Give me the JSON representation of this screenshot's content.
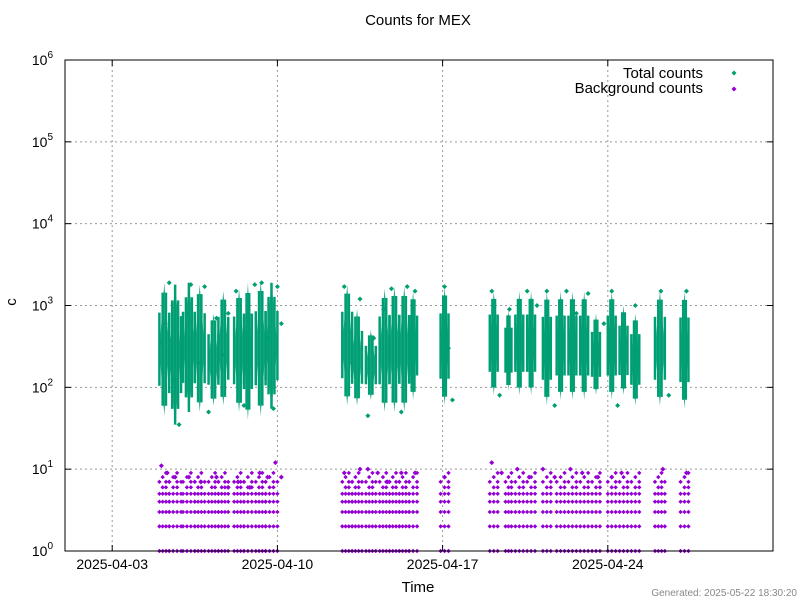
{
  "chart_data": {
    "type": "scatter",
    "title": "Counts for MEX",
    "xlabel": "Time",
    "ylabel": "c",
    "yscale": "log",
    "xlim": [
      "2025-04-01T00:00",
      "2025-05-01T00:00"
    ],
    "ylim": [
      1,
      1000000
    ],
    "grid": true,
    "legend_position": "top-right",
    "x_ticks": [
      "2025-04-03",
      "2025-04-10",
      "2025-04-17",
      "2025-04-24"
    ],
    "y_ticks": [
      {
        "base": "10",
        "exp": "0"
      },
      {
        "base": "10",
        "exp": "1"
      },
      {
        "base": "10",
        "exp": "2"
      },
      {
        "base": "10",
        "exp": "3"
      },
      {
        "base": "10",
        "exp": "4"
      },
      {
        "base": "10",
        "exp": "5"
      },
      {
        "base": "10",
        "exp": "6"
      }
    ],
    "series": [
      {
        "name": "Total counts",
        "color": "#009e73",
        "marker": "diamond",
        "points": [
          [
            "2025-04-05T02:00",
            350
          ],
          [
            "2025-04-05T06:00",
            600
          ],
          [
            "2025-04-05T10:00",
            1900
          ],
          [
            "2025-04-05T14:00",
            120
          ],
          [
            "2025-04-05T20:00",
            35
          ],
          [
            "2025-04-06T04:00",
            800
          ],
          [
            "2025-04-06T08:00",
            1800
          ],
          [
            "2025-04-06T16:00",
            200
          ],
          [
            "2025-04-06T22:00",
            1700
          ],
          [
            "2025-04-07T02:00",
            50
          ],
          [
            "2025-04-07T10:00",
            700
          ],
          [
            "2025-04-07T18:00",
            250
          ],
          [
            "2025-04-07T22:00",
            800
          ],
          [
            "2025-04-08T06:00",
            1500
          ],
          [
            "2025-04-08T14:00",
            60
          ],
          [
            "2025-04-08T20:00",
            200
          ],
          [
            "2025-04-09T01:00",
            1800
          ],
          [
            "2025-04-09T08:00",
            1900
          ],
          [
            "2025-04-09T14:00",
            400
          ],
          [
            "2025-04-09T20:00",
            55
          ],
          [
            "2025-04-10T00:00",
            1700
          ],
          [
            "2025-04-10T04:00",
            600
          ],
          [
            "2025-04-12T20:00",
            1700
          ],
          [
            "2025-04-13T04:00",
            200
          ],
          [
            "2025-04-13T12:00",
            1200
          ],
          [
            "2025-04-13T20:00",
            45
          ],
          [
            "2025-04-14T02:00",
            400
          ],
          [
            "2025-04-14T12:00",
            900
          ],
          [
            "2025-04-14T20:00",
            1600
          ],
          [
            "2025-04-15T06:00",
            50
          ],
          [
            "2025-04-15T12:00",
            1700
          ],
          [
            "2025-04-15T20:00",
            1500
          ],
          [
            "2025-04-17T02:00",
            1700
          ],
          [
            "2025-04-17T06:00",
            300
          ],
          [
            "2025-04-17T10:00",
            70
          ],
          [
            "2025-04-19T02:00",
            1500
          ],
          [
            "2025-04-19T10:00",
            80
          ],
          [
            "2025-04-19T20:00",
            900
          ],
          [
            "2025-04-20T04:00",
            400
          ],
          [
            "2025-04-20T14:00",
            1500
          ],
          [
            "2025-04-21T00:00",
            1000
          ],
          [
            "2025-04-21T10:00",
            1500
          ],
          [
            "2025-04-21T18:00",
            60
          ],
          [
            "2025-04-22T06:00",
            1500
          ],
          [
            "2025-04-22T16:00",
            800
          ],
          [
            "2025-04-23T04:00",
            1400
          ],
          [
            "2025-04-23T20:00",
            600
          ],
          [
            "2025-04-24T04:00",
            1500
          ],
          [
            "2025-04-24T10:00",
            60
          ],
          [
            "2025-04-25T04:00",
            1000
          ],
          [
            "2025-04-26T06:00",
            1500
          ],
          [
            "2025-04-26T14:00",
            80
          ],
          [
            "2025-04-27T08:00",
            1500
          ]
        ]
      },
      {
        "name": "Background counts",
        "color": "#9400d3",
        "marker": "diamond",
        "points": [
          [
            "2025-04-05T02:00",
            11
          ],
          [
            "2025-04-05T08:00",
            9
          ],
          [
            "2025-04-05T16:00",
            8
          ],
          [
            "2025-04-06T06:00",
            8
          ],
          [
            "2025-04-06T18:00",
            7
          ],
          [
            "2025-04-07T10:00",
            8
          ],
          [
            "2025-04-07T22:00",
            6
          ],
          [
            "2025-04-08T08:00",
            7
          ],
          [
            "2025-04-08T20:00",
            6
          ],
          [
            "2025-04-09T06:00",
            9
          ],
          [
            "2025-04-09T14:00",
            8
          ],
          [
            "2025-04-09T22:00",
            12
          ],
          [
            "2025-04-10T04:00",
            8
          ],
          [
            "2025-04-12T20:00",
            9
          ],
          [
            "2025-04-13T12:00",
            10
          ],
          [
            "2025-04-13T20:00",
            10
          ],
          [
            "2025-04-14T06:00",
            9
          ],
          [
            "2025-04-14T16:00",
            7
          ],
          [
            "2025-04-15T06:00",
            9
          ],
          [
            "2025-04-15T20:00",
            9
          ],
          [
            "2025-04-17T02:00",
            8
          ],
          [
            "2025-04-19T02:00",
            12
          ],
          [
            "2025-04-19T12:00",
            9
          ],
          [
            "2025-04-20T04:00",
            10
          ],
          [
            "2025-04-20T16:00",
            8
          ],
          [
            "2025-04-21T06:00",
            10
          ],
          [
            "2025-04-21T18:00",
            8
          ],
          [
            "2025-04-22T10:00",
            10
          ],
          [
            "2025-04-22T22:00",
            9
          ],
          [
            "2025-04-23T14:00",
            8
          ],
          [
            "2025-04-24T04:00",
            8
          ],
          [
            "2025-04-24T14:00",
            9
          ],
          [
            "2025-04-26T08:00",
            10
          ],
          [
            "2025-04-27T08:00",
            9
          ]
        ]
      }
    ],
    "bands": [
      {
        "start": "2025-04-05T00:00",
        "end": "2025-04-05T10:00",
        "lo": 45,
        "hi": 1900
      },
      {
        "start": "2025-04-05T10:00",
        "end": "2025-04-05T22:00",
        "lo": 35,
        "hi": 1800
      },
      {
        "start": "2025-04-06T00:00",
        "end": "2025-04-06T12:00",
        "lo": 50,
        "hi": 1900
      },
      {
        "start": "2025-04-06T12:00",
        "end": "2025-04-06T22:00",
        "lo": 50,
        "hi": 1800
      },
      {
        "start": "2025-04-07T02:00",
        "end": "2025-04-07T12:00",
        "lo": 60,
        "hi": 800
      },
      {
        "start": "2025-04-07T12:00",
        "end": "2025-04-07T22:00",
        "lo": 60,
        "hi": 1500
      },
      {
        "start": "2025-04-08T04:00",
        "end": "2025-04-08T14:00",
        "lo": 50,
        "hi": 1600
      },
      {
        "start": "2025-04-08T14:00",
        "end": "2025-04-08T22:00",
        "lo": 40,
        "hi": 1900
      },
      {
        "start": "2025-04-09T02:00",
        "end": "2025-04-09T12:00",
        "lo": 45,
        "hi": 2000
      },
      {
        "start": "2025-04-09T12:00",
        "end": "2025-04-10T00:00",
        "lo": 55,
        "hi": 1900
      },
      {
        "start": "2025-04-12T18:00",
        "end": "2025-04-13T04:00",
        "lo": 60,
        "hi": 1800
      },
      {
        "start": "2025-04-13T04:00",
        "end": "2025-04-13T14:00",
        "lo": 60,
        "hi": 900
      },
      {
        "start": "2025-04-13T18:00",
        "end": "2025-04-14T04:00",
        "lo": 70,
        "hi": 500
      },
      {
        "start": "2025-04-14T08:00",
        "end": "2025-04-14T18:00",
        "lo": 50,
        "hi": 1600
      },
      {
        "start": "2025-04-14T18:00",
        "end": "2025-04-15T04:00",
        "lo": 50,
        "hi": 1700
      },
      {
        "start": "2025-04-15T04:00",
        "end": "2025-04-15T14:00",
        "lo": 50,
        "hi": 1700
      },
      {
        "start": "2025-04-15T14:00",
        "end": "2025-04-15T22:00",
        "lo": 70,
        "hi": 1500
      },
      {
        "start": "2025-04-16T22:00",
        "end": "2025-04-17T06:00",
        "lo": 60,
        "hi": 1700
      },
      {
        "start": "2025-04-19T00:00",
        "end": "2025-04-19T08:00",
        "lo": 80,
        "hi": 1500
      },
      {
        "start": "2025-04-19T16:00",
        "end": "2025-04-19T22:00",
        "lo": 90,
        "hi": 900
      },
      {
        "start": "2025-04-20T02:00",
        "end": "2025-04-20T10:00",
        "lo": 80,
        "hi": 1500
      },
      {
        "start": "2025-04-20T14:00",
        "end": "2025-04-20T22:00",
        "lo": 80,
        "hi": 1500
      },
      {
        "start": "2025-04-21T06:00",
        "end": "2025-04-21T14:00",
        "lo": 60,
        "hi": 1500
      },
      {
        "start": "2025-04-21T20:00",
        "end": "2025-04-22T04:00",
        "lo": 70,
        "hi": 1500
      },
      {
        "start": "2025-04-22T08:00",
        "end": "2025-04-22T16:00",
        "lo": 70,
        "hi": 1500
      },
      {
        "start": "2025-04-22T20:00",
        "end": "2025-04-23T04:00",
        "lo": 70,
        "hi": 1500
      },
      {
        "start": "2025-04-23T08:00",
        "end": "2025-04-23T16:00",
        "lo": 80,
        "hi": 800
      },
      {
        "start": "2025-04-24T00:00",
        "end": "2025-04-24T08:00",
        "lo": 70,
        "hi": 1500
      },
      {
        "start": "2025-04-24T12:00",
        "end": "2025-04-24T20:00",
        "lo": 80,
        "hi": 1000
      },
      {
        "start": "2025-04-25T00:00",
        "end": "2025-04-25T08:00",
        "lo": 60,
        "hi": 800
      },
      {
        "start": "2025-04-26T00:00",
        "end": "2025-04-26T10:00",
        "lo": 60,
        "hi": 1500
      },
      {
        "start": "2025-04-27T02:00",
        "end": "2025-04-27T10:00",
        "lo": 55,
        "hi": 1500
      }
    ]
  },
  "footer": {
    "generated": "Generated: 2025-05-22 18:30:20"
  }
}
